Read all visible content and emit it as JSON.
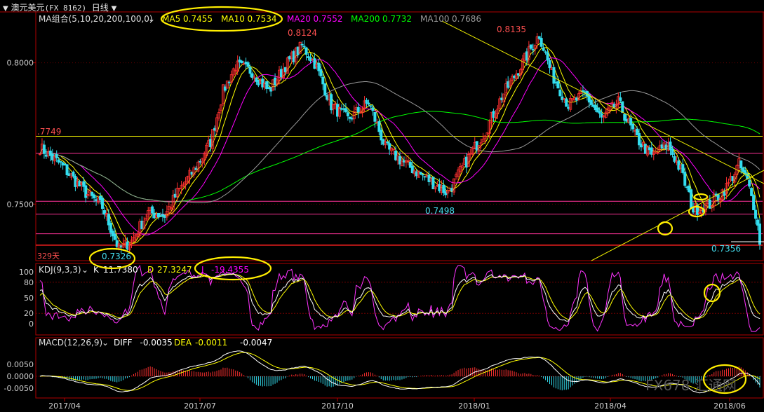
{
  "header": {
    "symbol_name": "澳元美元",
    "symbol_code": "(FX 8162)",
    "period": "日线"
  },
  "chart_data": {
    "type": "candlestick",
    "time_axis_labels": [
      "2017/04",
      "2017/07",
      "2017/10",
      "2018/01",
      "2018/04",
      "2018/06"
    ],
    "main_panel": {
      "indicator": "MA组合(5,10,20,200,100,0)",
      "ma_values": [
        {
          "name": "MA5",
          "value": "0.7455",
          "color": "#ffff00"
        },
        {
          "name": "MA10",
          "value": "0.7534",
          "color": "#ffff00"
        },
        {
          "name": "MA20",
          "value": "0.7552",
          "color": "#ff00ff"
        },
        {
          "name": "MA200",
          "value": "0.7732",
          "color": "#00ff00"
        },
        {
          "name": "MA100",
          "value": "0.7686",
          "color": "#9a9a9a"
        }
      ],
      "y_ticks": [
        "0.8000",
        "0.7500"
      ],
      "y_range": [
        0.73,
        0.818
      ],
      "price_labels": [
        "0.8124",
        "0.8135",
        ".7749",
        "0.7498",
        "0.7326",
        "0.7356"
      ],
      "period_label": "329天",
      "anchors": [
        {
          "t": 0,
          "p": 0.77
        },
        {
          "t": 10,
          "p": 0.764
        },
        {
          "t": 22,
          "p": 0.754
        },
        {
          "t": 30,
          "p": 0.749
        },
        {
          "t": 38,
          "p": 0.734
        },
        {
          "t": 44,
          "p": 0.737
        },
        {
          "t": 52,
          "p": 0.747
        },
        {
          "t": 60,
          "p": 0.746
        },
        {
          "t": 66,
          "p": 0.754
        },
        {
          "t": 74,
          "p": 0.762
        },
        {
          "t": 82,
          "p": 0.772
        },
        {
          "t": 88,
          "p": 0.79
        },
        {
          "t": 94,
          "p": 0.799
        },
        {
          "t": 102,
          "p": 0.797
        },
        {
          "t": 110,
          "p": 0.79
        },
        {
          "t": 118,
          "p": 0.799
        },
        {
          "t": 126,
          "p": 0.806
        },
        {
          "t": 132,
          "p": 0.8
        },
        {
          "t": 140,
          "p": 0.785
        },
        {
          "t": 148,
          "p": 0.78
        },
        {
          "t": 158,
          "p": 0.786
        },
        {
          "t": 166,
          "p": 0.77
        },
        {
          "t": 176,
          "p": 0.764
        },
        {
          "t": 188,
          "p": 0.758
        },
        {
          "t": 196,
          "p": 0.754
        },
        {
          "t": 204,
          "p": 0.764
        },
        {
          "t": 214,
          "p": 0.776
        },
        {
          "t": 222,
          "p": 0.788
        },
        {
          "t": 232,
          "p": 0.8
        },
        {
          "t": 240,
          "p": 0.81
        },
        {
          "t": 246,
          "p": 0.796
        },
        {
          "t": 254,
          "p": 0.785
        },
        {
          "t": 262,
          "p": 0.789
        },
        {
          "t": 270,
          "p": 0.78
        },
        {
          "t": 278,
          "p": 0.786
        },
        {
          "t": 286,
          "p": 0.774
        },
        {
          "t": 294,
          "p": 0.767
        },
        {
          "t": 302,
          "p": 0.771
        },
        {
          "t": 308,
          "p": 0.762
        },
        {
          "t": 314,
          "p": 0.748
        },
        {
          "t": 322,
          "p": 0.75
        },
        {
          "t": 330,
          "p": 0.756
        },
        {
          "t": 336,
          "p": 0.764
        },
        {
          "t": 340,
          "p": 0.758
        },
        {
          "t": 344,
          "p": 0.747
        },
        {
          "t": 346,
          "p": 0.737
        }
      ]
    },
    "kdj_panel": {
      "indicator": "KDJ(9,3,3)",
      "values": [
        {
          "name": "K",
          "value": "11.7380",
          "color": "#ffffff"
        },
        {
          "name": "D",
          "value": "27.3247",
          "color": "#ffff00"
        },
        {
          "name": "J",
          "value": "-19.4355",
          "color": "#ff00ff"
        }
      ],
      "y_ticks": [
        "100",
        "80",
        "50",
        "20",
        "0"
      ]
    },
    "macd_panel": {
      "indicator": "MACD(12,26,9)",
      "values": [
        {
          "name": "DIFF",
          "value": "-0.0035",
          "color": "#ffffff"
        },
        {
          "name": "DEA",
          "value": "-0.0011",
          "color": "#ffff00"
        },
        {
          "name": "MACD",
          "value": "-0.0047",
          "color": "#ffffff"
        }
      ],
      "y_ticks": [
        "0.0050",
        "0.0000",
        "-0.0050"
      ]
    }
  },
  "watermark": "FX678 汇通网"
}
